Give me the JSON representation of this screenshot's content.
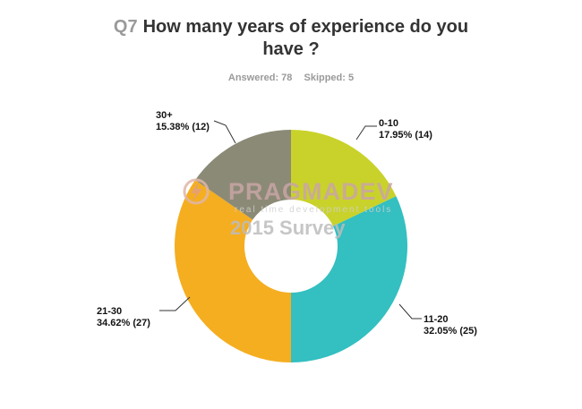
{
  "header": {
    "qnum": "Q7",
    "title_line1": "How many years of experience do you",
    "title_line2": "have ?",
    "answered": "Answered: 78",
    "skipped": "Skipped: 5"
  },
  "watermark": {
    "brand": "PRAGMADEV",
    "tagline": "real time development tools",
    "survey": "2015 Survey"
  },
  "chart_data": {
    "type": "pie",
    "donut": true,
    "categories": [
      "0-10",
      "11-20",
      "21-30",
      "30+"
    ],
    "values": [
      14,
      25,
      27,
      12
    ],
    "percent_labels": [
      "17.95% (14)",
      "32.05% (25)",
      "34.62% (27)",
      "15.38% (12)"
    ],
    "colors": [
      "#c9d22a",
      "#34bfc1",
      "#f5ae20",
      "#8b8a76"
    ]
  }
}
